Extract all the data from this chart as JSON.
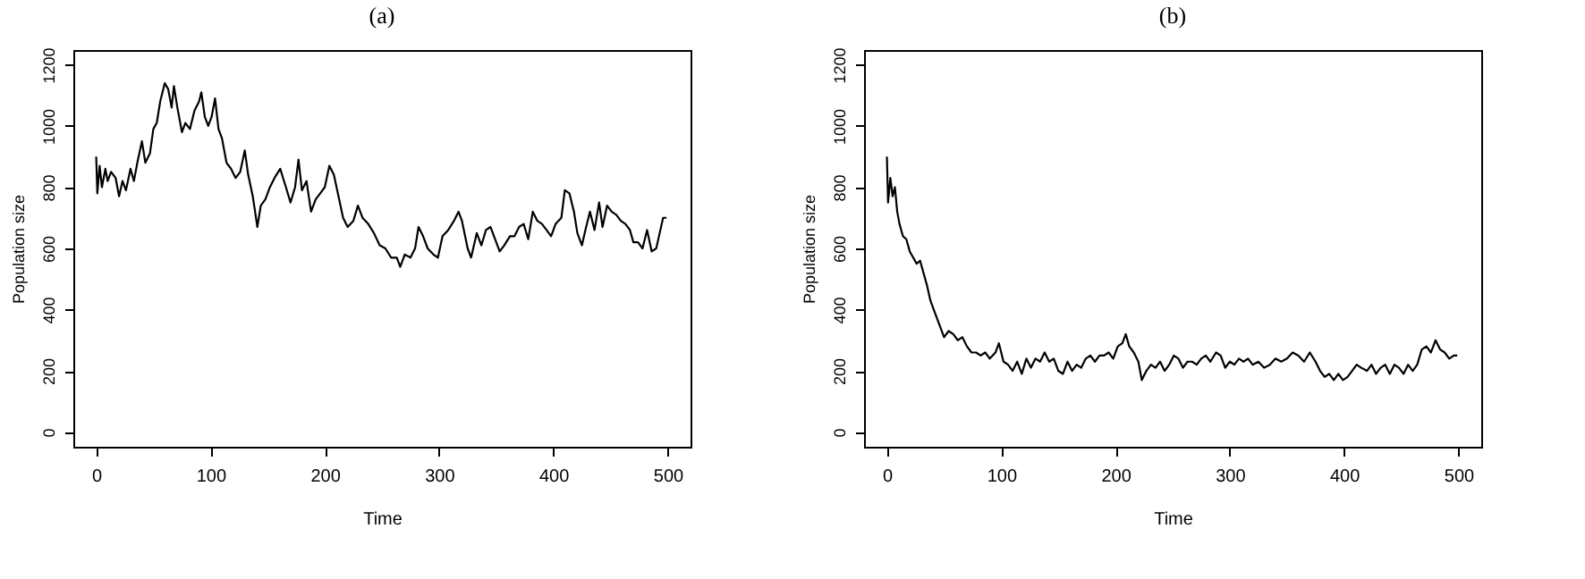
{
  "chart_data": [
    {
      "type": "line",
      "title": "(a)",
      "xlabel": "Time",
      "ylabel": "Population size",
      "xlim": [
        -20,
        520
      ],
      "ylim": [
        -48,
        1248
      ],
      "xticks": [
        0,
        100,
        200,
        300,
        400,
        500
      ],
      "yticks": [
        0,
        200,
        400,
        600,
        800,
        1000,
        1200
      ],
      "grid": false,
      "x": [
        0,
        1,
        3,
        5,
        8,
        10,
        13,
        17,
        20,
        23,
        26,
        30,
        33,
        36,
        40,
        43,
        47,
        50,
        53,
        56,
        60,
        63,
        66,
        68,
        71,
        75,
        78,
        82,
        86,
        90,
        92,
        95,
        98,
        101,
        104,
        107,
        110,
        114,
        118,
        122,
        126,
        130,
        133,
        137,
        141,
        144,
        148,
        152,
        156,
        161,
        166,
        170,
        174,
        177,
        180,
        184,
        188,
        192,
        196,
        200,
        204,
        208,
        212,
        216,
        220,
        225,
        229,
        233,
        238,
        243,
        248,
        253,
        258,
        263,
        266,
        270,
        275,
        279,
        282,
        286,
        290,
        295,
        299,
        303,
        308,
        313,
        317,
        320,
        325,
        328,
        333,
        337,
        341,
        345,
        349,
        353,
        357,
        362,
        366,
        370,
        374,
        378,
        382,
        386,
        390,
        394,
        398,
        402,
        407,
        410,
        414,
        418,
        421,
        425,
        428,
        432,
        436,
        440,
        443,
        447,
        451,
        455,
        459,
        463,
        467,
        470,
        474,
        478,
        482,
        486,
        490,
        493,
        496,
        499
      ],
      "series": [
        {
          "color": "#000000",
          "values": [
            900,
            780,
            870,
            800,
            860,
            820,
            850,
            830,
            770,
            820,
            790,
            860,
            820,
            880,
            950,
            880,
            910,
            990,
            1010,
            1080,
            1140,
            1120,
            1060,
            1130,
            1060,
            980,
            1010,
            990,
            1050,
            1080,
            1110,
            1030,
            1000,
            1030,
            1090,
            990,
            960,
            880,
            860,
            830,
            850,
            920,
            840,
            770,
            670,
            740,
            760,
            800,
            830,
            860,
            800,
            750,
            800,
            890,
            790,
            820,
            720,
            760,
            780,
            800,
            870,
            840,
            770,
            700,
            670,
            690,
            740,
            700,
            680,
            650,
            610,
            600,
            570,
            570,
            540,
            580,
            570,
            600,
            670,
            640,
            600,
            580,
            570,
            640,
            660,
            690,
            720,
            690,
            600,
            570,
            650,
            610,
            660,
            670,
            630,
            590,
            610,
            640,
            640,
            670,
            680,
            630,
            720,
            690,
            680,
            660,
            640,
            680,
            700,
            790,
            780,
            720,
            650,
            610,
            660,
            720,
            660,
            750,
            670,
            740,
            720,
            710,
            690,
            680,
            660,
            620,
            620,
            600,
            660,
            590,
            600,
            650,
            700,
            700
          ]
        }
      ]
    },
    {
      "type": "line",
      "title": "(b)",
      "xlabel": "Time",
      "ylabel": "Population size",
      "xlim": [
        -20,
        520
      ],
      "ylim": [
        -48,
        1248
      ],
      "xticks": [
        0,
        100,
        200,
        300,
        400,
        500
      ],
      "yticks": [
        0,
        200,
        400,
        600,
        800,
        1000,
        1200
      ],
      "grid": false,
      "x": [
        0,
        1,
        3,
        5,
        7,
        9,
        11,
        14,
        17,
        20,
        23,
        26,
        29,
        32,
        35,
        38,
        41,
        44,
        47,
        50,
        54,
        58,
        62,
        66,
        70,
        74,
        78,
        82,
        86,
        90,
        95,
        98,
        102,
        106,
        110,
        114,
        118,
        122,
        126,
        130,
        134,
        138,
        142,
        146,
        150,
        154,
        158,
        162,
        166,
        170,
        174,
        178,
        182,
        186,
        190,
        194,
        198,
        202,
        206,
        209,
        212,
        216,
        220,
        223,
        227,
        231,
        235,
        239,
        243,
        247,
        251,
        255,
        259,
        263,
        267,
        271,
        275,
        279,
        283,
        288,
        292,
        296,
        300,
        304,
        308,
        312,
        316,
        320,
        325,
        330,
        335,
        340,
        345,
        350,
        355,
        360,
        365,
        370,
        375,
        379,
        383,
        387,
        391,
        395,
        399,
        403,
        407,
        411,
        415,
        420,
        424,
        428,
        432,
        436,
        440,
        444,
        448,
        452,
        456,
        460,
        464,
        468,
        472,
        476,
        480,
        484,
        488,
        492,
        496,
        499
      ],
      "series": [
        {
          "color": "#000000",
          "values": [
            900,
            750,
            830,
            770,
            800,
            720,
            680,
            640,
            630,
            590,
            570,
            550,
            560,
            520,
            480,
            430,
            400,
            370,
            340,
            310,
            330,
            320,
            300,
            310,
            280,
            260,
            260,
            250,
            260,
            240,
            260,
            290,
            230,
            220,
            200,
            230,
            190,
            240,
            210,
            240,
            230,
            260,
            230,
            240,
            200,
            190,
            230,
            200,
            220,
            210,
            240,
            250,
            230,
            250,
            250,
            260,
            240,
            280,
            290,
            320,
            280,
            260,
            230,
            170,
            200,
            220,
            210,
            230,
            200,
            220,
            250,
            240,
            210,
            230,
            230,
            220,
            240,
            250,
            230,
            260,
            250,
            210,
            230,
            220,
            240,
            230,
            240,
            220,
            230,
            210,
            220,
            240,
            230,
            240,
            260,
            250,
            230,
            260,
            230,
            200,
            180,
            190,
            170,
            190,
            170,
            180,
            200,
            220,
            210,
            200,
            220,
            190,
            210,
            220,
            190,
            220,
            210,
            190,
            220,
            200,
            220,
            270,
            280,
            260,
            300,
            270,
            260,
            240,
            250,
            250
          ]
        }
      ]
    }
  ]
}
